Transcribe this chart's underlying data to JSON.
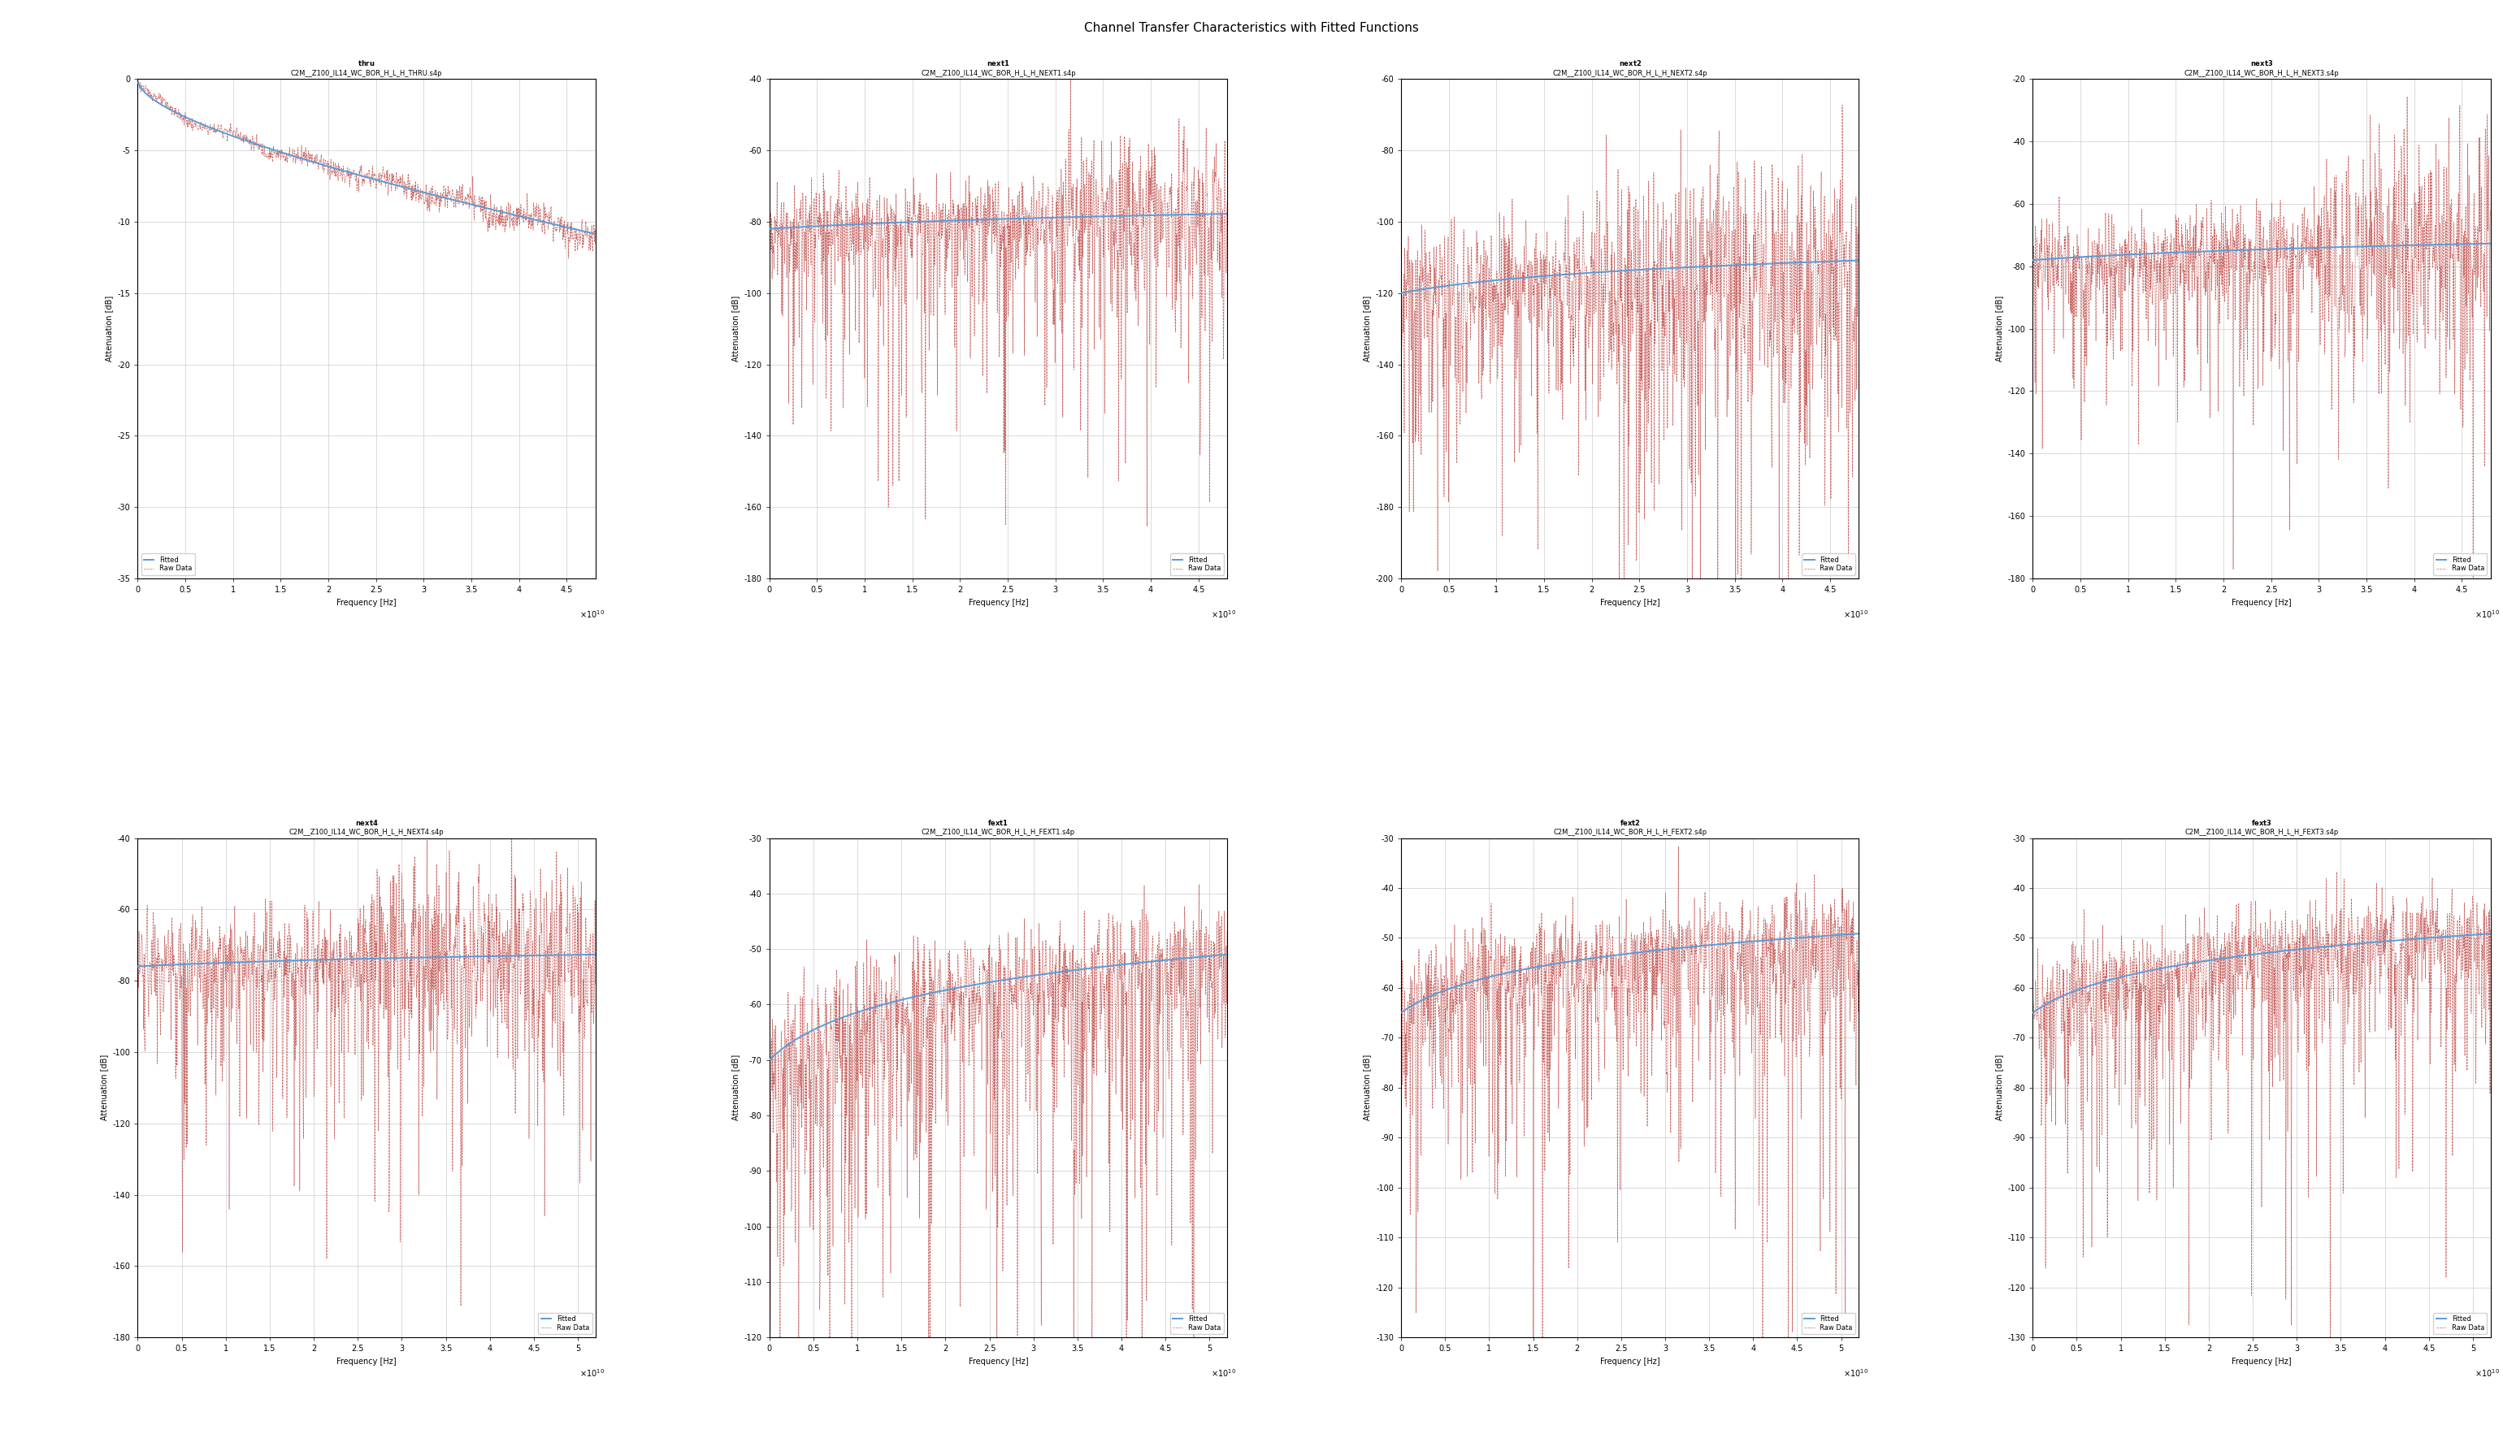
{
  "title": "Channel Transfer Characteristics with Fitted Functions",
  "subplots": [
    {
      "name": "thru",
      "subtitle": "C2M__Z100_IL14_WC_BOR_H_L_H_THRU.s4p",
      "ylim": [
        -35,
        0
      ],
      "yticks": [
        0,
        -5,
        -10,
        -15,
        -20,
        -25,
        -30,
        -35
      ],
      "xlim": [
        0,
        48000000000.0
      ],
      "xticks": [
        0,
        0.5,
        1,
        1.5,
        2,
        2.5,
        3,
        3.5,
        4,
        4.5
      ],
      "xexp": 10,
      "fitted_type": "thru",
      "legend_loc": "lower left"
    },
    {
      "name": "next1",
      "subtitle": "C2M__Z100_IL14_WC_BOR_H_L_H_NEXT1.s4p",
      "ylim": [
        -180,
        -40
      ],
      "yticks": [
        -40,
        -60,
        -80,
        -100,
        -120,
        -140,
        -160,
        -180
      ],
      "xlim": [
        0,
        48000000000.0
      ],
      "xticks": [
        0,
        0.5,
        1,
        1.5,
        2,
        2.5,
        3,
        3.5,
        4,
        4.5
      ],
      "xexp": 10,
      "fitted_type": "next1",
      "legend_loc": "lower right"
    },
    {
      "name": "next2",
      "subtitle": "C2M__Z100_IL14_WC_BOR_H_L_H_NEXT2.s4p",
      "ylim": [
        -200,
        -60
      ],
      "yticks": [
        -60,
        -80,
        -100,
        -120,
        -140,
        -160,
        -180,
        -200
      ],
      "xlim": [
        0,
        48000000000.0
      ],
      "xticks": [
        0,
        0.5,
        1,
        1.5,
        2,
        2.5,
        3,
        3.5,
        4,
        4.5
      ],
      "xexp": 10,
      "fitted_type": "next2",
      "legend_loc": "lower right"
    },
    {
      "name": "next3",
      "subtitle": "C2M__Z100_IL14_WC_BOR_H_L_H_NEXT3.s4p",
      "ylim": [
        -180,
        -20
      ],
      "yticks": [
        -20,
        -40,
        -60,
        -80,
        -100,
        -120,
        -140,
        -160,
        -180
      ],
      "xlim": [
        0,
        48000000000.0
      ],
      "xticks": [
        0,
        0.5,
        1,
        1.5,
        2,
        2.5,
        3,
        3.5,
        4,
        4.5
      ],
      "xexp": 10,
      "fitted_type": "next3",
      "legend_loc": "lower right"
    },
    {
      "name": "next4",
      "subtitle": "C2M__Z100_IL14_WC_BOR_H_L_H_NEXT4.s4p",
      "ylim": [
        -180,
        -40
      ],
      "yticks": [
        -40,
        -60,
        -80,
        -100,
        -120,
        -140,
        -160,
        -180
      ],
      "xlim": [
        0,
        52000000000.0
      ],
      "xticks": [
        0,
        0.5,
        1,
        1.5,
        2,
        2.5,
        3,
        3.5,
        4,
        4.5,
        5
      ],
      "xexp": 10,
      "fitted_type": "next4",
      "legend_loc": "lower right"
    },
    {
      "name": "fext1",
      "subtitle": "C2M__Z100_IL14_WC_BOR_H_L_H_FEXT1.s4p",
      "ylim": [
        -120,
        -30
      ],
      "yticks": [
        -30,
        -40,
        -50,
        -60,
        -70,
        -80,
        -90,
        -100,
        -110,
        -120
      ],
      "xlim": [
        0,
        52000000000.0
      ],
      "xticks": [
        0,
        0.5,
        1,
        1.5,
        2,
        2.5,
        3,
        3.5,
        4,
        4.5,
        5
      ],
      "xexp": 10,
      "fitted_type": "fext1",
      "legend_loc": "lower right"
    },
    {
      "name": "fext2",
      "subtitle": "C2M__Z100_IL14_WC_BOR_H_L_H_FEXT2.s4p",
      "ylim": [
        -130,
        -30
      ],
      "yticks": [
        -30,
        -40,
        -50,
        -60,
        -70,
        -80,
        -90,
        -100,
        -110,
        -120,
        -130
      ],
      "xlim": [
        0,
        52000000000.0
      ],
      "xticks": [
        0,
        0.5,
        1,
        1.5,
        2,
        2.5,
        3,
        3.5,
        4,
        4.5,
        5
      ],
      "xexp": 10,
      "fitted_type": "fext2",
      "legend_loc": "lower right"
    },
    {
      "name": "fext3",
      "subtitle": "C2M__Z100_IL14_WC_BOR_H_L_H_FEXT3.s4p",
      "ylim": [
        -130,
        -30
      ],
      "yticks": [
        -30,
        -40,
        -50,
        -60,
        -70,
        -80,
        -90,
        -100,
        -110,
        -120,
        -130
      ],
      "xlim": [
        0,
        52000000000.0
      ],
      "xticks": [
        0,
        0.5,
        1,
        1.5,
        2,
        2.5,
        3,
        3.5,
        4,
        4.5,
        5
      ],
      "xexp": 10,
      "fitted_type": "fext3",
      "legend_loc": "lower right"
    }
  ],
  "fitted_color": "#5B9BD5",
  "raw_color": "#C0504D",
  "fitted_lw": 1.4,
  "raw_lw": 0.5,
  "ylabel": "Attenuation [dB]",
  "xlabel": "Frequency [Hz]",
  "legend_fitted": "Fitted",
  "legend_raw": "Raw Data",
  "bg_color": "#ffffff",
  "grid_color": "#cccccc",
  "title_fontsize": 11,
  "label_fontsize": 7,
  "tick_fontsize": 7,
  "subtitle_fontsize": 6,
  "name_fontsize": 8
}
